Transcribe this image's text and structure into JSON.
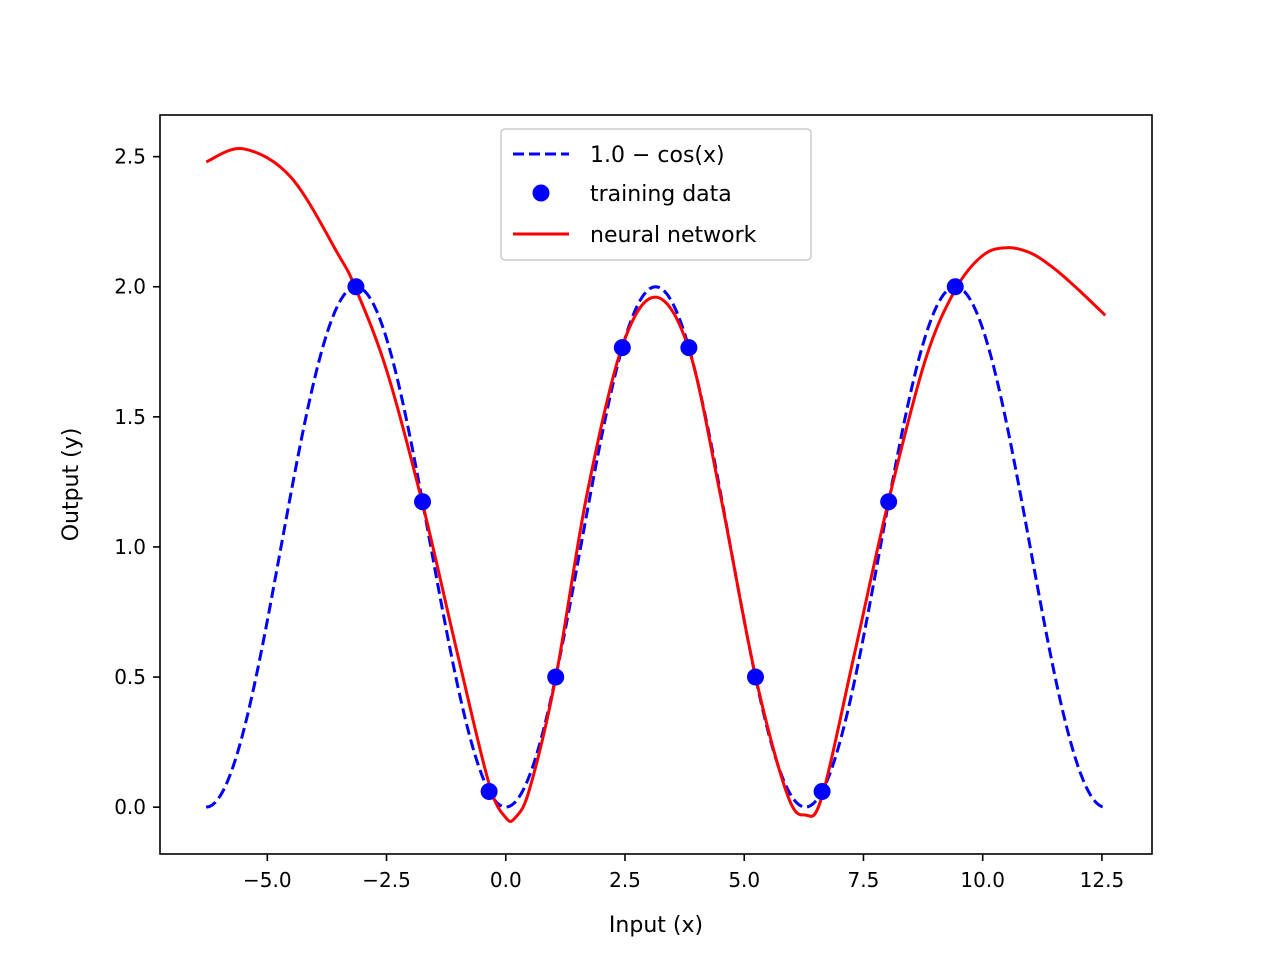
{
  "chart_data": {
    "type": "line",
    "title": "",
    "xlabel": "Input (x)",
    "ylabel": "Output (y)",
    "xlim": [
      -7.25,
      13.55
    ],
    "ylim": [
      -0.18,
      2.66
    ],
    "grid": false,
    "legend_position": "top-center",
    "xticks": [
      -5.0,
      -2.5,
      0.0,
      2.5,
      5.0,
      7.5,
      10.0,
      12.5
    ],
    "xtick_labels": [
      "−5.0",
      "−2.5",
      "0.0",
      "2.5",
      "5.0",
      "7.5",
      "10.0",
      "12.5"
    ],
    "yticks": [
      0.0,
      0.5,
      1.0,
      1.5,
      2.0,
      2.5
    ],
    "ytick_labels": [
      "0.0",
      "0.5",
      "1.0",
      "1.5",
      "2.0",
      "2.5"
    ],
    "series": [
      {
        "name": "1.0 − cos(x)",
        "style": "dashed-line",
        "color": "#0000ff",
        "function": "1 - cos(x)",
        "x_range": [
          -6.2832,
          12.5664
        ]
      },
      {
        "name": "training data",
        "style": "markers",
        "color": "#0000ff",
        "x": [
          -3.1416,
          -1.7453,
          -0.3491,
          1.0472,
          2.4435,
          3.8397,
          5.236,
          6.6323,
          8.0285,
          9.4248
        ],
        "y": [
          2.0,
          1.1736,
          0.0603,
          0.5,
          1.766,
          1.766,
          0.5,
          0.0603,
          1.1736,
          2.0
        ]
      },
      {
        "name": "neural network",
        "style": "solid-line",
        "color": "#ff0000",
        "x": [
          -6.28,
          -5.5,
          -4.5,
          -3.5,
          -3.14,
          -2.5,
          -1.75,
          -1.0,
          -0.35,
          0.0,
          0.2,
          0.5,
          1.05,
          1.7,
          2.44,
          3.14,
          3.84,
          4.5,
          5.24,
          5.9,
          6.28,
          6.63,
          7.3,
          8.03,
          8.8,
          9.43,
          10.0,
          10.5,
          11.0,
          11.5,
          12.0,
          12.57
        ],
        "y": [
          2.48,
          2.53,
          2.42,
          2.12,
          1.99,
          1.68,
          1.17,
          0.58,
          0.09,
          -0.04,
          -0.04,
          0.07,
          0.5,
          1.2,
          1.77,
          1.96,
          1.76,
          1.2,
          0.5,
          0.05,
          -0.03,
          0.04,
          0.58,
          1.18,
          1.72,
          1.99,
          2.12,
          2.15,
          2.13,
          2.07,
          1.99,
          1.89
        ]
      }
    ]
  }
}
